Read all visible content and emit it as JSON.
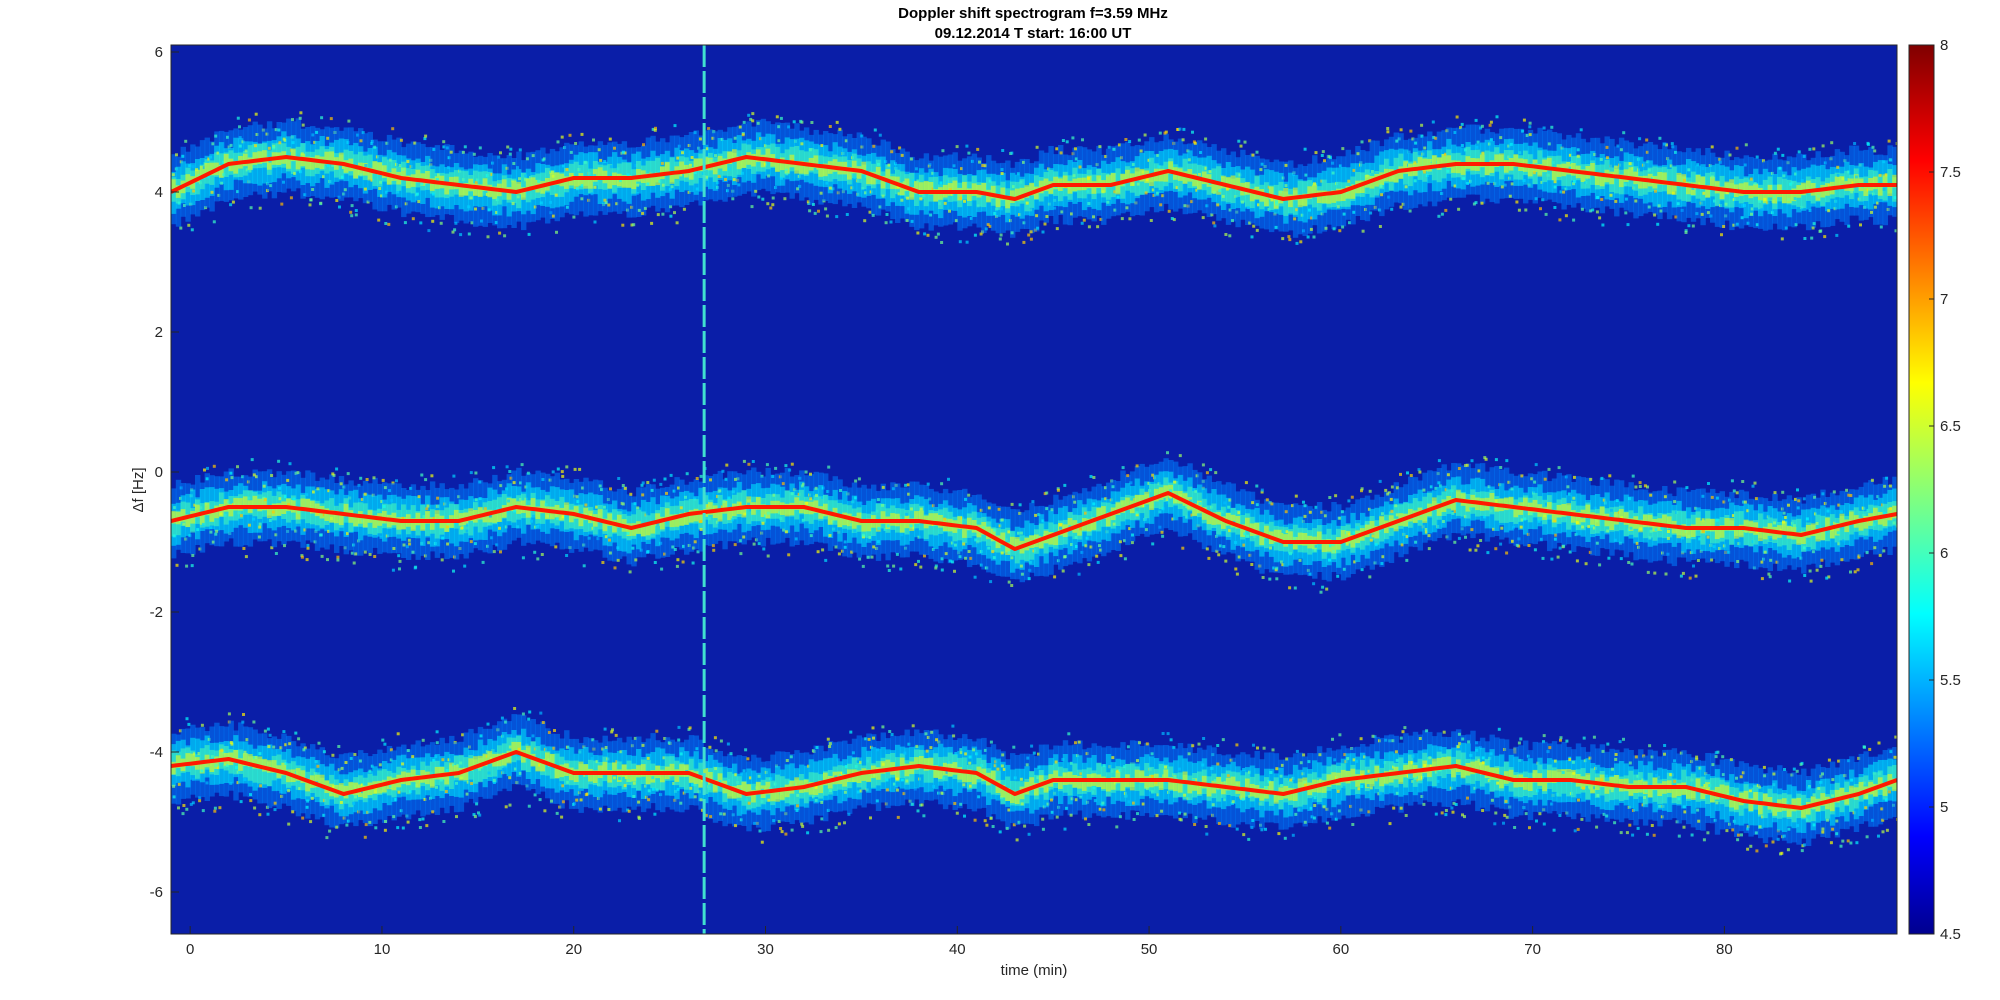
{
  "chart_data": {
    "type": "heatmap",
    "title": "Doppler shift spectrogram f=3.59 MHz",
    "subtitle": "09.12.2014   T start: 16:00 UT",
    "xlabel": "time (min)",
    "ylabel": "Δf [Hz]",
    "xlim": [
      -1,
      89
    ],
    "ylim": [
      -6.6,
      6.1
    ],
    "x_ticks": [
      0,
      10,
      20,
      30,
      40,
      50,
      60,
      70,
      80
    ],
    "x_tick_labels": [
      "0",
      "10",
      "20",
      "30",
      "40",
      "50",
      "60",
      "70",
      "80"
    ],
    "y_ticks": [
      6,
      4,
      2,
      0,
      -2,
      -4,
      -6
    ],
    "y_tick_labels": [
      "6",
      "4",
      "2",
      "0",
      "-2",
      "-4",
      "-6"
    ],
    "colormap": "jet",
    "colorbar": {
      "range": [
        4.5,
        8
      ],
      "ticks": [
        8,
        7.5,
        7,
        6.5,
        6,
        5.5,
        5,
        4.5
      ],
      "tick_labels": [
        "8",
        "7.5",
        "7",
        "6.5",
        "6",
        "5.5",
        "5",
        "4.5"
      ]
    },
    "background_level": 4.6,
    "vertical_interference_line": {
      "time_min": 26.8
    },
    "series": [
      {
        "time_min": [
          -1,
          2,
          5,
          8,
          11,
          14,
          17,
          20,
          23,
          26,
          29,
          32,
          35,
          38,
          41,
          43,
          45,
          48,
          51,
          54,
          57,
          60,
          63,
          66,
          69,
          72,
          75,
          78,
          81,
          84,
          87,
          89
        ],
        "doppler_hz": [
          4.0,
          4.4,
          4.5,
          4.4,
          4.2,
          4.1,
          4.0,
          4.2,
          4.2,
          4.3,
          4.5,
          4.4,
          4.3,
          4.0,
          4.0,
          3.9,
          4.1,
          4.1,
          4.3,
          4.1,
          3.9,
          4.0,
          4.3,
          4.4,
          4.4,
          4.3,
          4.2,
          4.1,
          4.0,
          4.0,
          4.1,
          4.1
        ]
      },
      {
        "time_min": [
          -1,
          2,
          5,
          8,
          11,
          14,
          17,
          20,
          23,
          26,
          29,
          32,
          35,
          38,
          41,
          43,
          45,
          48,
          51,
          54,
          57,
          60,
          63,
          66,
          69,
          72,
          75,
          78,
          81,
          84,
          87,
          89
        ],
        "doppler_hz": [
          -0.7,
          -0.5,
          -0.5,
          -0.6,
          -0.7,
          -0.7,
          -0.5,
          -0.6,
          -0.8,
          -0.6,
          -0.5,
          -0.5,
          -0.7,
          -0.7,
          -0.8,
          -1.1,
          -0.9,
          -0.6,
          -0.3,
          -0.7,
          -1.0,
          -1.0,
          -0.7,
          -0.4,
          -0.5,
          -0.6,
          -0.7,
          -0.8,
          -0.8,
          -0.9,
          -0.7,
          -0.6
        ]
      },
      {
        "time_min": [
          -1,
          2,
          5,
          8,
          11,
          14,
          17,
          20,
          23,
          26,
          29,
          32,
          35,
          38,
          41,
          43,
          45,
          48,
          51,
          54,
          57,
          60,
          63,
          66,
          69,
          72,
          75,
          78,
          81,
          84,
          87,
          89
        ],
        "doppler_hz": [
          -4.2,
          -4.1,
          -4.3,
          -4.6,
          -4.4,
          -4.3,
          -4.0,
          -4.3,
          -4.3,
          -4.3,
          -4.6,
          -4.5,
          -4.3,
          -4.2,
          -4.3,
          -4.6,
          -4.4,
          -4.4,
          -4.4,
          -4.5,
          -4.6,
          -4.4,
          -4.3,
          -4.2,
          -4.4,
          -4.4,
          -4.5,
          -4.5,
          -4.7,
          -4.8,
          -4.6,
          -4.4
        ]
      }
    ]
  }
}
